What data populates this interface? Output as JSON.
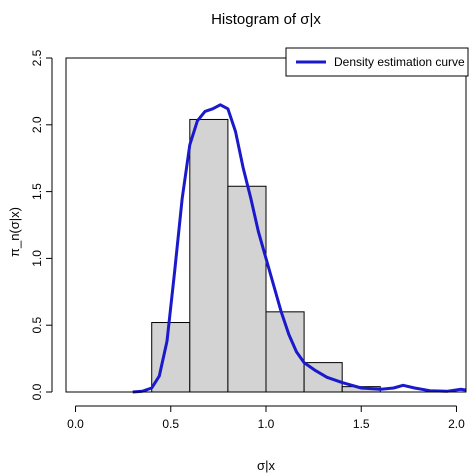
{
  "chart_data": {
    "type": "bar",
    "title": "Histogram of σ|x",
    "xlabel": "σ|x",
    "ylabel": "π_n(σ|x)",
    "xlim": [
      -0.05,
      2.05
    ],
    "ylim": [
      0,
      2.5
    ],
    "x_ticks": [
      "0.0",
      "0.5",
      "1.0",
      "1.5",
      "2.0"
    ],
    "y_ticks": [
      "0.0",
      "0.5",
      "1.0",
      "1.5",
      "2.0",
      "2.5"
    ],
    "grid": false,
    "legend_position": "top-right",
    "bins": [
      {
        "x0": 0.4,
        "x1": 0.6,
        "density": 0.52
      },
      {
        "x0": 0.6,
        "x1": 0.8,
        "density": 2.04
      },
      {
        "x0": 0.8,
        "x1": 1.0,
        "density": 1.54
      },
      {
        "x0": 1.0,
        "x1": 1.2,
        "density": 0.6
      },
      {
        "x0": 1.2,
        "x1": 1.4,
        "density": 0.22
      },
      {
        "x0": 1.4,
        "x1": 1.6,
        "density": 0.04
      }
    ],
    "series": [
      {
        "name": "Density estimation curve",
        "color": "#1a1acc",
        "x": [
          0.3,
          0.35,
          0.4,
          0.44,
          0.48,
          0.52,
          0.56,
          0.6,
          0.64,
          0.68,
          0.72,
          0.76,
          0.8,
          0.84,
          0.88,
          0.92,
          0.96,
          1.0,
          1.04,
          1.08,
          1.12,
          1.16,
          1.2,
          1.26,
          1.32,
          1.4,
          1.5,
          1.6,
          1.67,
          1.72,
          1.78,
          1.86,
          1.95,
          2.02,
          2.05
        ],
        "y": [
          0.0,
          0.005,
          0.03,
          0.12,
          0.38,
          0.9,
          1.45,
          1.85,
          2.03,
          2.1,
          2.12,
          2.15,
          2.12,
          1.95,
          1.68,
          1.45,
          1.2,
          1.0,
          0.8,
          0.6,
          0.43,
          0.3,
          0.22,
          0.16,
          0.11,
          0.07,
          0.03,
          0.02,
          0.03,
          0.05,
          0.03,
          0.01,
          0.005,
          0.02,
          0.015
        ]
      }
    ],
    "bar_fill": "#d3d3d3",
    "bar_stroke": "#000000"
  }
}
